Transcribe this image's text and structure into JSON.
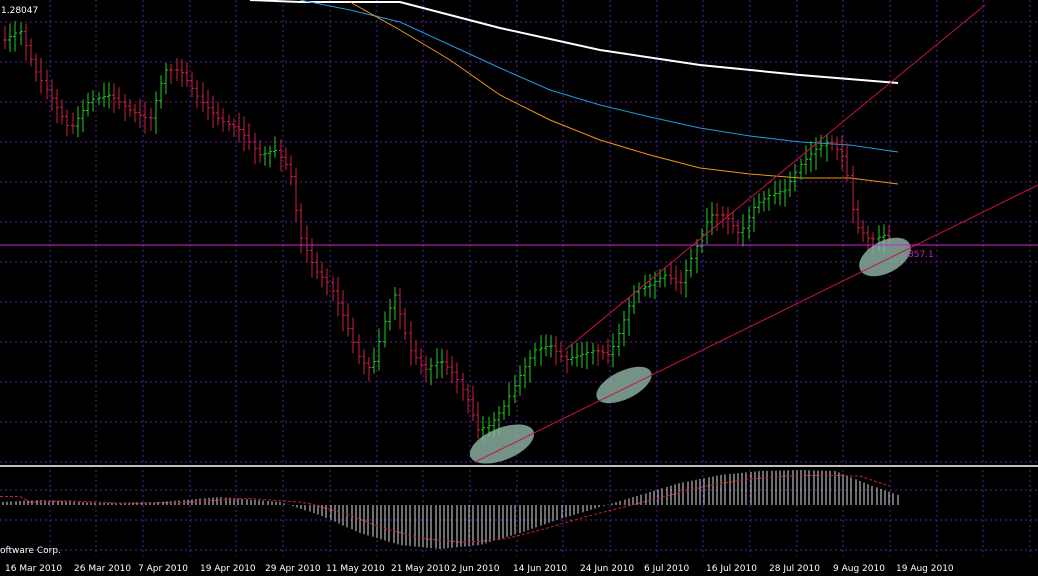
{
  "chart_data": {
    "type": "ohlc",
    "price_label": "1.28047",
    "level_label": "857.1",
    "watermark": "oftware Corp.",
    "x_labels": [
      "16 Mar 2010",
      "26 Mar 2010",
      "7 Apr 2010",
      "19 Apr 2010",
      "29 Apr 2010",
      "11 May 2010",
      "21 May 2010",
      "2 Jun 2010",
      "14 Jun 2010",
      "24 Jun 2010",
      "6 Jul 2010",
      "16 Jul 2010",
      "28 Jul 2010",
      "9 Aug 2010",
      "19 Aug 2010"
    ],
    "up_color": "#22cc22",
    "down_color": "#cc2244",
    "trendline_color": "#cc1144",
    "level_color": "#cc22cc",
    "ma_colors": {
      "slow": "#ffffff",
      "mid": "#2299dd",
      "fast": "#ee9911"
    },
    "grid_color": "#5522aa",
    "highlight_color": "#8fb8a8",
    "oscillator": {
      "histogram_color": "#dddddd",
      "signal_color": "#cc2233"
    }
  }
}
